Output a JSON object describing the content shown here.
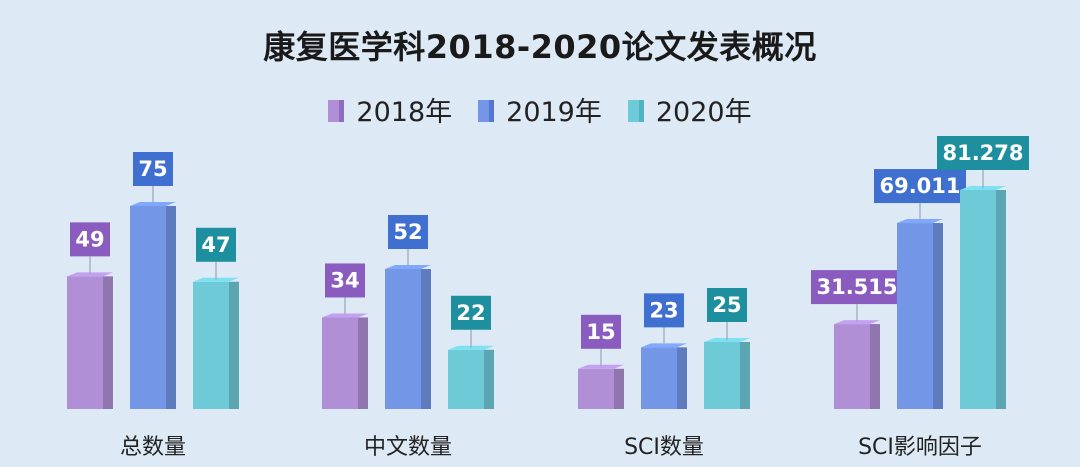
{
  "chart_data": {
    "type": "bar",
    "title": "康复医学科2018-2020论文发表概况",
    "categories": [
      "总数量",
      "中文数量",
      "SCI数量",
      "SCI影响因子"
    ],
    "series": [
      {
        "name": "2018年",
        "values": [
          49,
          34,
          15,
          31.515
        ],
        "labels": [
          "49",
          "34",
          "15",
          "31.515"
        ],
        "color": "#b08fd6"
      },
      {
        "name": "2019年",
        "values": [
          75,
          52,
          23,
          69.011
        ],
        "labels": [
          "75",
          "52",
          "23",
          "69.011"
        ],
        "color": "#7396e6"
      },
      {
        "name": "2020年",
        "values": [
          47,
          22,
          25,
          81.278
        ],
        "labels": [
          "47",
          "22",
          "25",
          "81.278"
        ],
        "color": "#6fcad8"
      }
    ],
    "label_colors": [
      "#8a5cbf",
      "#3f6fcf",
      "#1d8f9e"
    ],
    "grid": false,
    "legend_position": "top-center"
  }
}
